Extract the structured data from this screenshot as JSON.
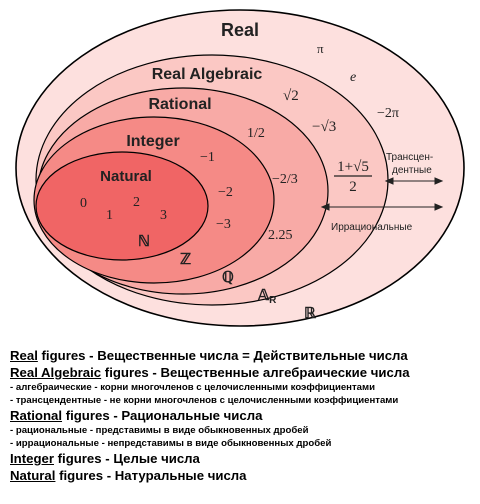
{
  "diagram": {
    "sets": {
      "real": "Real",
      "real_algebraic": "Real Algebraic",
      "rational": "Rational",
      "integer": "Integer",
      "natural": "Natural"
    },
    "numbers": {
      "pi": "π",
      "e": "e",
      "sqrt2": "√2",
      "neg_2pi": "−2π",
      "neg_sqrt3": "−√3",
      "half": "1/2",
      "neg_two_thirds": "−2/3",
      "neg1": "−1",
      "neg2": "−2",
      "neg3": "−3",
      "two_25": "2.25",
      "golden_num": "1+√5",
      "golden_den": "2",
      "n0": "0",
      "n1": "1",
      "n2": "2",
      "n3": "3"
    },
    "symbols": {
      "naturals": "ℕ",
      "integers": "ℤ",
      "rationals": "ℚ",
      "algebraic": "𝔸",
      "algebraic_sub": "R",
      "reals": "ℝ"
    },
    "annotations": {
      "transcendental_line1": "Трансцен-",
      "transcendental_line2": "дентные",
      "irrational": "Иррациональные"
    },
    "colors": {
      "real_fill": "#fde0de",
      "algebraic_fill": "#fbc8c4",
      "rational_fill": "#f8aaa6",
      "integer_fill": "#f58a86",
      "natural_fill": "#f06565"
    }
  },
  "legend": {
    "real": {
      "word": "Real",
      "rest": " figures - Вещественные числа  = Действительные числа"
    },
    "real_algebraic": {
      "word": "Real Algebraic",
      "rest": " figures - Вещественные алгебраические числа"
    },
    "algebraic_note": "- алгебраические - корни многочленов с целочисленными коэффициентами",
    "transcendental_note": "- трансцендентные - не корни многочленов с целочисленными коэффициентами",
    "rational": {
      "word": "Rational",
      "rest": " figures - Рациональные числа"
    },
    "rational_note": "- рациональные - представимы в виде обыкновенных дробей",
    "irrational_note": "- иррациональные - непредставимы в виде обыкновенных дробей",
    "integer": {
      "word": "Integer",
      "rest": " figures - Целые числа"
    },
    "natural": {
      "word": "Natural",
      "rest": " figures - Натуральные числа"
    }
  }
}
